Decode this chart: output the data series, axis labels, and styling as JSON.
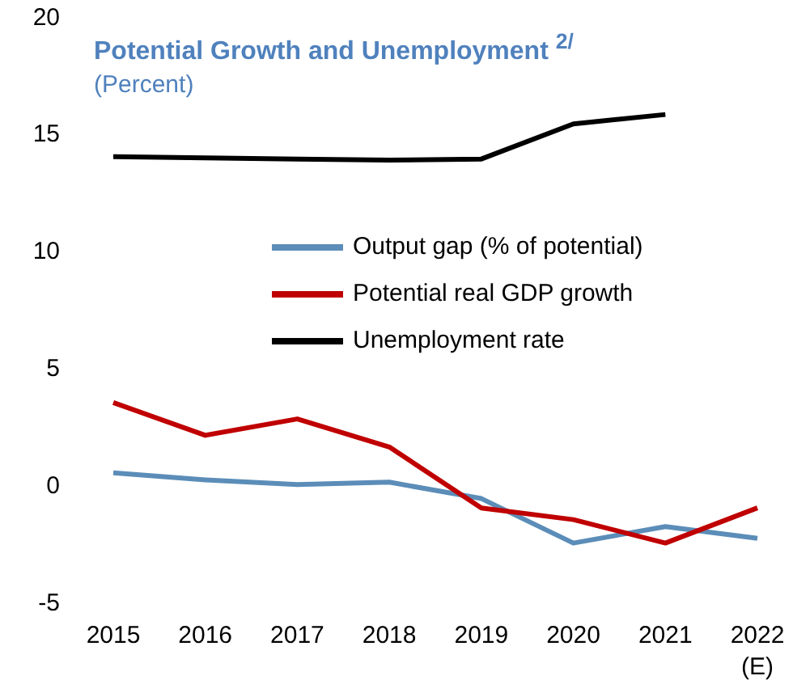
{
  "chart_data": {
    "type": "line",
    "title": "Potential Growth  and Unemployment $^{2/}$",
    "subtitle": "(Percent)",
    "categories": [
      "2015",
      "2016",
      "2017",
      "2018",
      "2019",
      "2020",
      "2021",
      "2022\n(E)"
    ],
    "series": [
      {
        "name": "Output gap (% of potential)",
        "color": "#5b8db8",
        "values": [
          0.5,
          0.2,
          0,
          0.1,
          -0.6,
          -2.5,
          -1.8,
          -2.3
        ]
      },
      {
        "name": "Potential real GDP growth",
        "color": "#c00000",
        "values": [
          3.5,
          2.1,
          2.8,
          1.6,
          -1.0,
          -1.5,
          -2.5,
          -1.0
        ]
      },
      {
        "name": "Unemployment rate",
        "color": "#000000",
        "values": [
          14.0,
          13.95,
          13.9,
          13.85,
          13.9,
          15.4,
          15.8,
          null
        ]
      }
    ],
    "ylim": [
      -5,
      20
    ],
    "yticks": [
      -5,
      0,
      5,
      10,
      15,
      20
    ],
    "grid": false,
    "legend": "right",
    "marker": "none",
    "line_style": "solid"
  }
}
